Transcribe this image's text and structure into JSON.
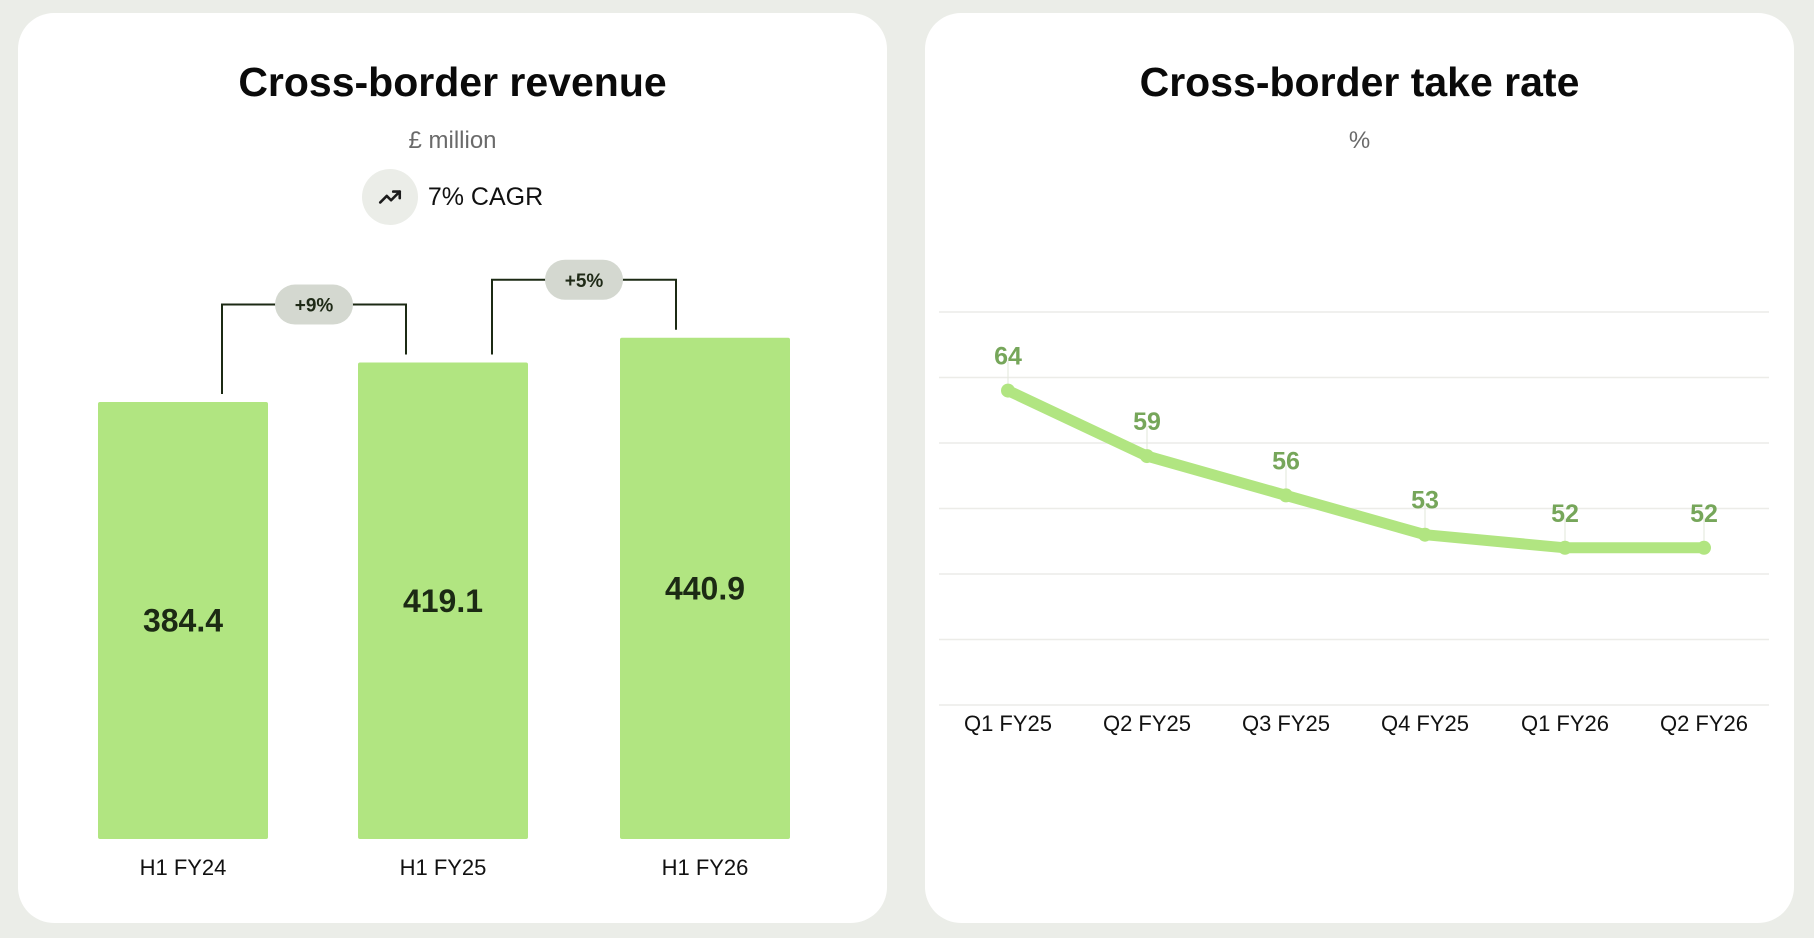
{
  "colors": {
    "background": "#ebede8",
    "card": "#ffffff",
    "bar_fill": "#b1e581",
    "line": "#b1e581",
    "point_label": "#76a65a",
    "bracket": "#1c2a14",
    "pill": "#d4d8d0",
    "grid": "#ecece8"
  },
  "revenue_card": {
    "title": "Cross-border revenue",
    "subtitle": "£ million",
    "cagr_icon": "trend-up-icon",
    "cagr_label": "7% CAGR"
  },
  "take_rate_card": {
    "title": "Cross-border take rate",
    "subtitle": "%"
  },
  "chart_data": [
    {
      "type": "bar",
      "title": "Cross-border revenue",
      "subtitle": "£ million",
      "categories": [
        "H1 FY24",
        "H1 FY25",
        "H1 FY26"
      ],
      "values": [
        384.4,
        419.1,
        440.9
      ],
      "value_labels": [
        "384.4",
        "419.1",
        "440.9"
      ],
      "ylim": [
        0,
        480
      ],
      "growth_annotations": [
        {
          "from": 0,
          "to": 1,
          "label": "+9%"
        },
        {
          "from": 1,
          "to": 2,
          "label": "+5%"
        }
      ],
      "annotation": "7% CAGR",
      "xlabel": "",
      "ylabel": ""
    },
    {
      "type": "line",
      "title": "Cross-border take rate",
      "subtitle": "%",
      "categories": [
        "Q1 FY25",
        "Q2 FY25",
        "Q3 FY25",
        "Q4 FY25",
        "Q1 FY26",
        "Q2 FY26"
      ],
      "values": [
        64,
        59,
        56,
        53,
        52,
        52
      ],
      "value_labels": [
        "64",
        "59",
        "56",
        "53",
        "52",
        "52"
      ],
      "ylim": [
        40,
        70
      ],
      "grid": true,
      "xlabel": "",
      "ylabel": ""
    }
  ]
}
